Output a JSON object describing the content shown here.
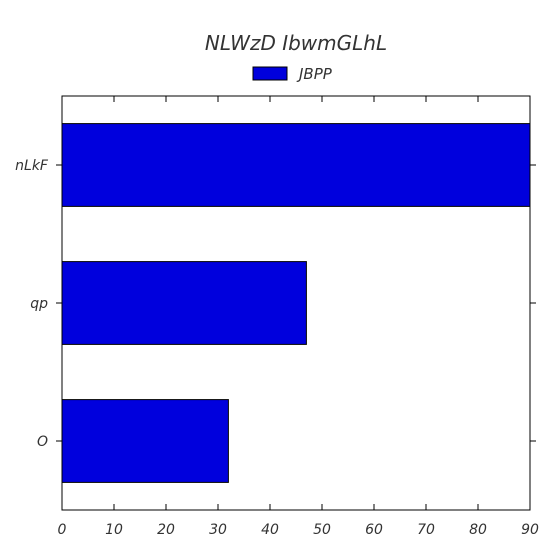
{
  "chart_data": {
    "type": "bar",
    "orientation": "horizontal",
    "title": "NLWzD IbwmGLhL",
    "xlabel": "",
    "ylabel": "",
    "categories": [
      "nLkF",
      "qp",
      "O"
    ],
    "series": [
      {
        "name": "JBPP",
        "values": [
          90,
          47,
          32
        ],
        "color": "#0000dd"
      }
    ],
    "xlim": [
      0,
      90
    ],
    "xticks": [
      0,
      10,
      20,
      30,
      40,
      50,
      60,
      70,
      80,
      90
    ],
    "grid": false,
    "legend_position": "top-center"
  }
}
